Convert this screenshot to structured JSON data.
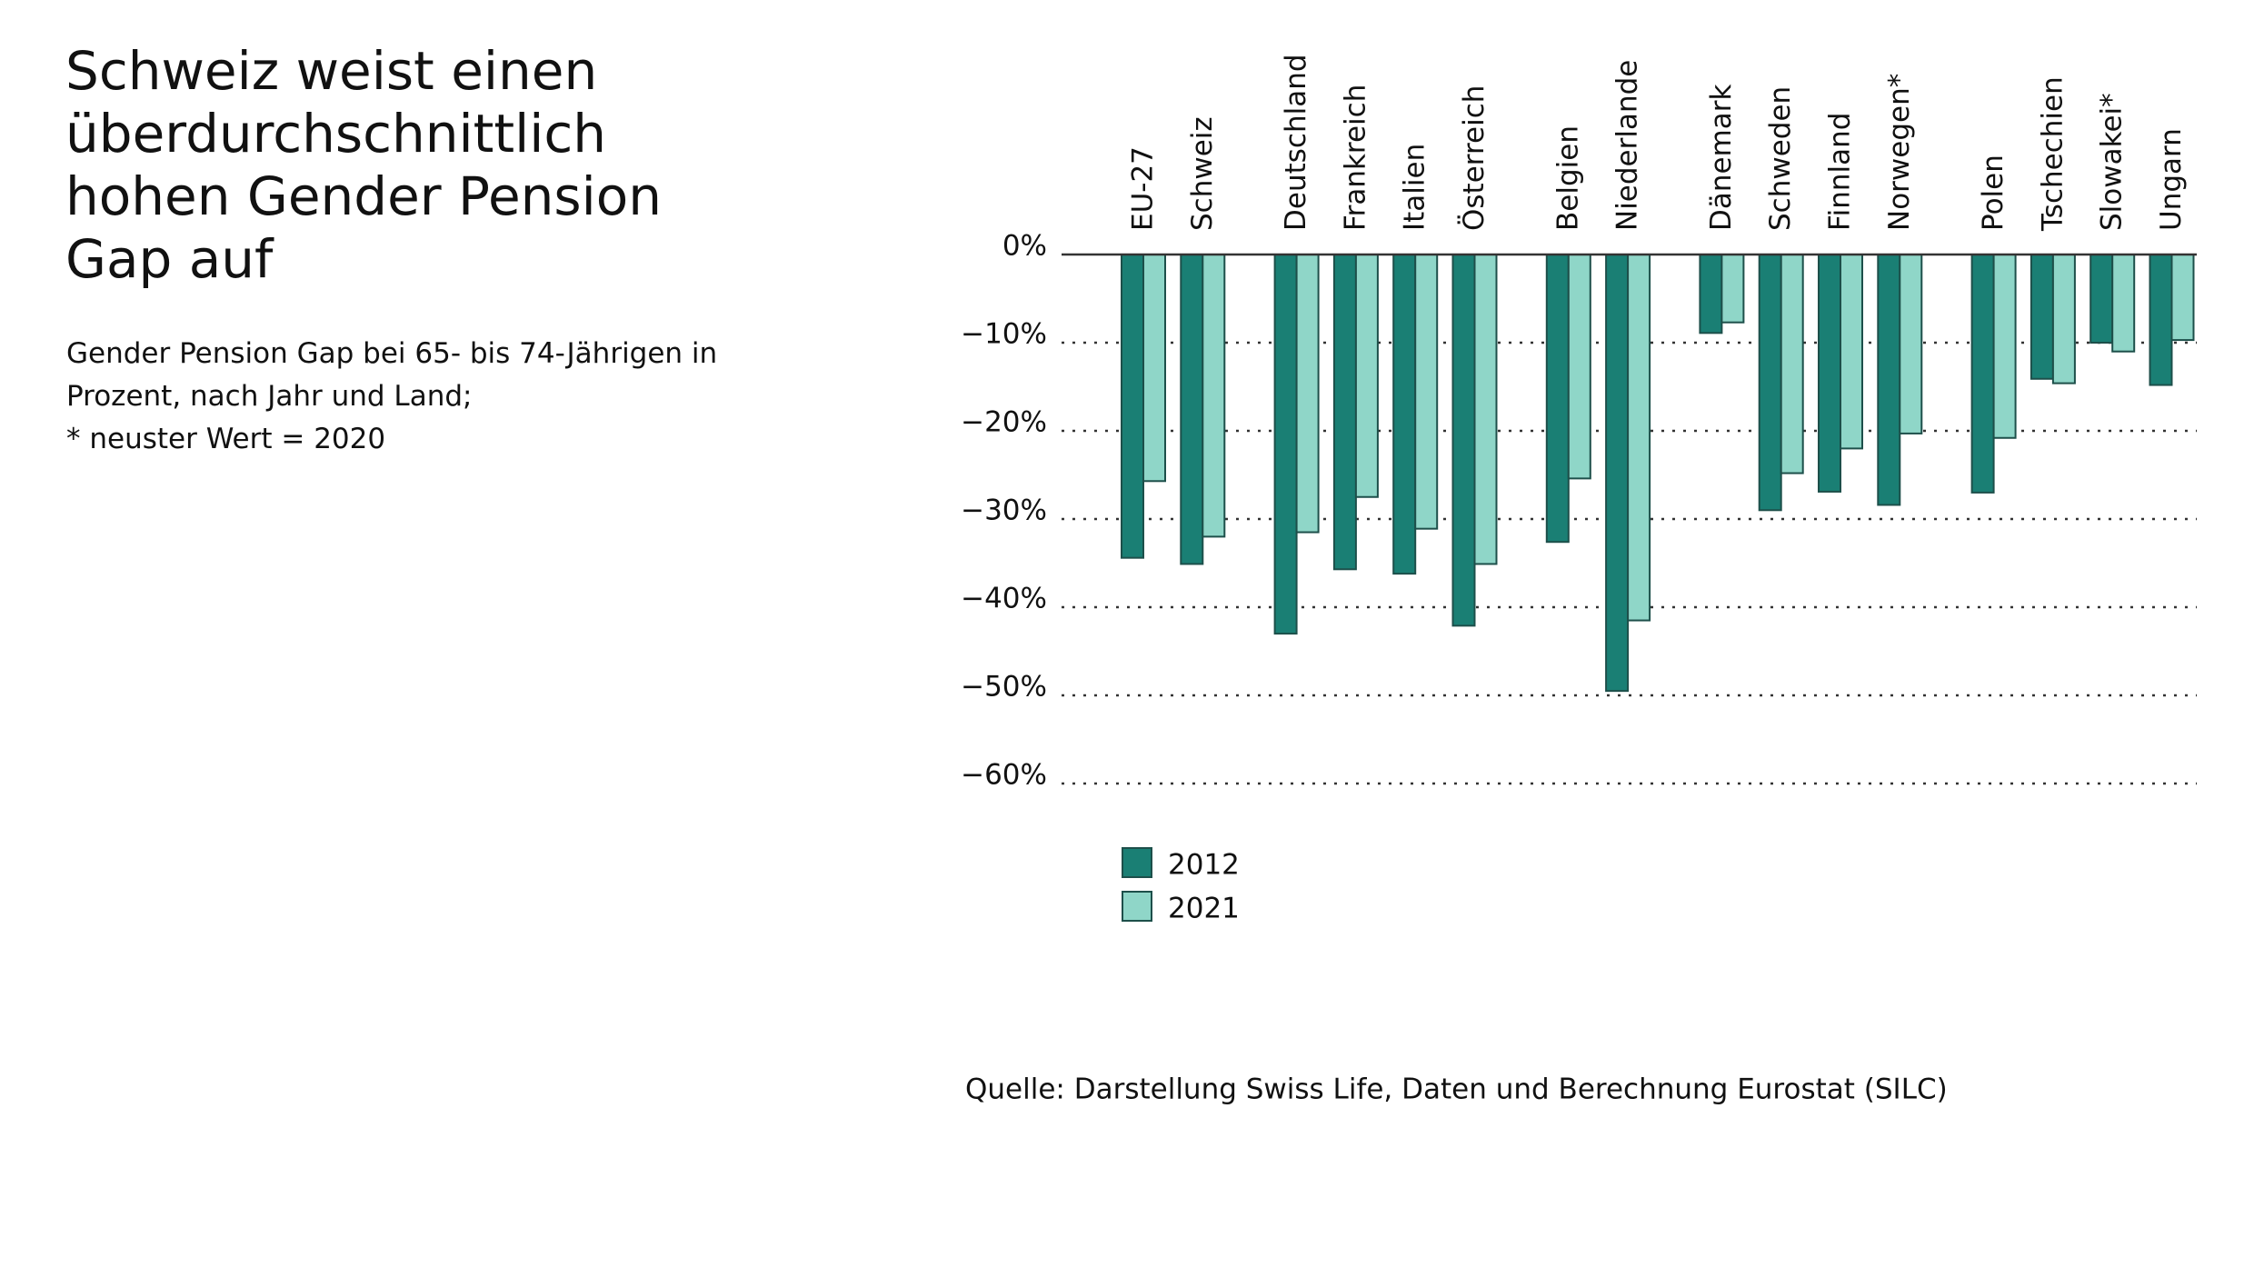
{
  "chart_data": {
    "type": "bar",
    "title": "Schweiz weist einen überdurchschnittlich hohen Gender Pension Gap auf",
    "subtitle": "Gender Pension Gap bei 65- bis 74-Jährigen in Prozent, nach Jahr und Land;",
    "note": "* neuster Wert = 2020",
    "source": "Quelle: Darstellung Swiss Life, Daten und Berechnung Eurostat (SILC)",
    "categories": [
      "EU-27",
      "Schweiz",
      "Deutschland",
      "Frankreich",
      "Italien",
      "Österreich",
      "Belgien",
      "Niederlande",
      "Dänemark",
      "Schweden",
      "Finnland",
      "Norwegen*",
      "Polen",
      "Tschechien",
      "Slowakei*",
      "Ungarn"
    ],
    "series": [
      {
        "name": "2012",
        "color": "#1a7f74",
        "values": [
          -34.4,
          -35.1,
          -43.0,
          -35.7,
          -36.2,
          -42.1,
          -32.6,
          -49.5,
          -8.9,
          -29.0,
          -26.9,
          -28.4,
          -27.0,
          -14.1,
          -10.0,
          -14.8
        ]
      },
      {
        "name": "2021",
        "color": "#8fd6c8",
        "values": [
          -25.7,
          -32.0,
          -31.5,
          -27.5,
          -31.1,
          -35.1,
          -25.4,
          -41.5,
          -7.7,
          -24.8,
          -22.0,
          -20.3,
          -20.8,
          -14.6,
          -11.0,
          -9.7
        ]
      }
    ],
    "ylim": [
      -60,
      0
    ],
    "yticks": [
      {
        "value": 0,
        "label": "0%"
      },
      {
        "value": -10,
        "label": "−10%"
      },
      {
        "value": -20,
        "label": "−20%"
      },
      {
        "value": -30,
        "label": "−30%"
      },
      {
        "value": -40,
        "label": "−40%"
      },
      {
        "value": -50,
        "label": "−50%"
      },
      {
        "value": -60,
        "label": "−60%"
      }
    ],
    "grid": true
  }
}
